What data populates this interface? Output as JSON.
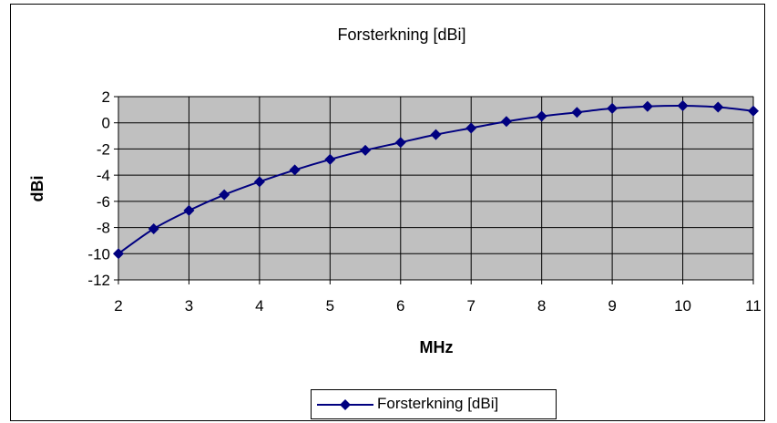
{
  "chart_data": {
    "type": "line",
    "title": "Forsterkning [dBi]",
    "xlabel": "MHz",
    "ylabel": "dBi",
    "xlim": [
      2,
      11
    ],
    "ylim": [
      -12,
      2
    ],
    "x_ticks": [
      2,
      3,
      4,
      5,
      6,
      7,
      8,
      9,
      10,
      11
    ],
    "y_ticks": [
      -12,
      -10,
      -8,
      -6,
      -4,
      -2,
      0,
      2
    ],
    "grid": true,
    "legend_position": "bottom-center",
    "plot_background": "#c0c0c0",
    "series": [
      {
        "name": "Forsterkning [dBi]",
        "color": "#000080",
        "marker": "diamond",
        "x": [
          2,
          2.5,
          3,
          3.5,
          4,
          4.5,
          5,
          5.5,
          6,
          6.5,
          7,
          7.5,
          8,
          8.5,
          9,
          9.5,
          10,
          10.5,
          11
        ],
        "y": [
          -10.0,
          -8.1,
          -6.7,
          -5.5,
          -4.5,
          -3.6,
          -2.8,
          -2.1,
          -1.5,
          -0.9,
          -0.4,
          0.1,
          0.5,
          0.8,
          1.1,
          1.25,
          1.3,
          1.2,
          0.9
        ]
      }
    ]
  }
}
